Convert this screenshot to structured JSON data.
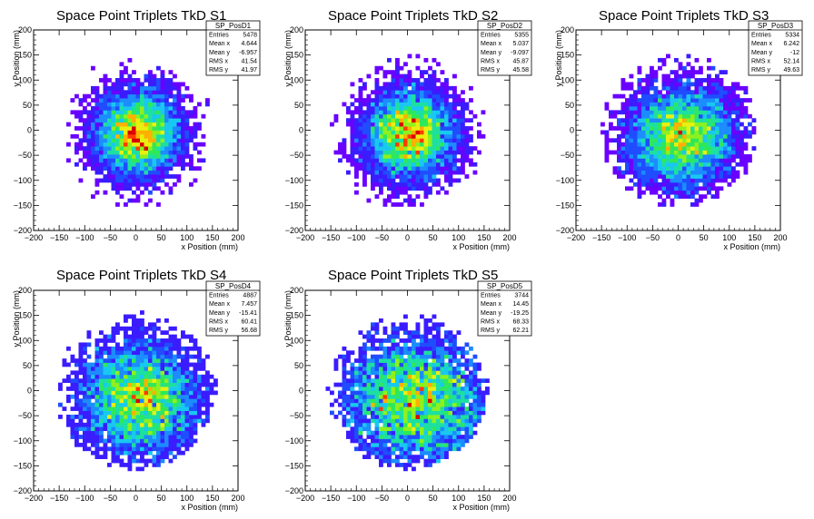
{
  "chart_data": [
    {
      "type": "heatmap",
      "title": "Space Point Triplets TkD S1",
      "xlabel": "x Position (mm)",
      "ylabel": "y Position (mm)",
      "xlim": [
        -200,
        200
      ],
      "ylim": [
        -200,
        200
      ],
      "xticks": [
        -200,
        -150,
        -100,
        -50,
        0,
        50,
        100,
        150,
        200
      ],
      "yticks": [
        -200,
        -150,
        -100,
        -50,
        0,
        50,
        100,
        150,
        200
      ],
      "stats": {
        "name": "SP_PosD1",
        "rows": [
          {
            "label": "Entries",
            "value": "5478"
          },
          {
            "label": "Mean x",
            "value": "4.644"
          },
          {
            "label": "Mean y",
            "value": "-6.957"
          },
          {
            "label": "RMS x",
            "value": "41.54"
          },
          {
            "label": "RMS y",
            "value": "41.97"
          }
        ]
      },
      "distribution": {
        "mean_x": 4.644,
        "mean_y": -6.957,
        "rms_x": 41.54,
        "rms_y": 41.97,
        "radius": 155,
        "entries": 5478
      }
    },
    {
      "type": "heatmap",
      "title": "Space Point Triplets TkD S2",
      "xlabel": "x Position (mm)",
      "ylabel": "y Position (mm)",
      "xlim": [
        -200,
        200
      ],
      "ylim": [
        -200,
        200
      ],
      "xticks": [
        -200,
        -150,
        -100,
        -50,
        0,
        50,
        100,
        150,
        200
      ],
      "yticks": [
        -200,
        -150,
        -100,
        -50,
        0,
        50,
        100,
        150,
        200
      ],
      "stats": {
        "name": "SP_PosD2",
        "rows": [
          {
            "label": "Entries",
            "value": "5355"
          },
          {
            "label": "Mean x",
            "value": "5.037"
          },
          {
            "label": "Mean y",
            "value": "-9.097"
          },
          {
            "label": "RMS x",
            "value": "45.87"
          },
          {
            "label": "RMS y",
            "value": "45.58"
          }
        ]
      },
      "distribution": {
        "mean_x": 5.037,
        "mean_y": -9.097,
        "rms_x": 45.87,
        "rms_y": 45.58,
        "radius": 155,
        "entries": 5355
      }
    },
    {
      "type": "heatmap",
      "title": "Space Point Triplets TkD S3",
      "xlabel": "x Position (mm)",
      "ylabel": "y Position (mm)",
      "xlim": [
        -200,
        200
      ],
      "ylim": [
        -200,
        200
      ],
      "xticks": [
        -200,
        -150,
        -100,
        -50,
        0,
        50,
        100,
        150,
        200
      ],
      "yticks": [
        -200,
        -150,
        -100,
        -50,
        0,
        50,
        100,
        150,
        200
      ],
      "stats": {
        "name": "SP_PosD3",
        "rows": [
          {
            "label": "Entries",
            "value": "5334"
          },
          {
            "label": "Mean x",
            "value": "6.242"
          },
          {
            "label": "Mean y",
            "value": "-12"
          },
          {
            "label": "RMS x",
            "value": "52.14"
          },
          {
            "label": "RMS y",
            "value": "49.63"
          }
        ]
      },
      "distribution": {
        "mean_x": 6.242,
        "mean_y": -12,
        "rms_x": 52.14,
        "rms_y": 49.63,
        "radius": 155,
        "entries": 5334
      }
    },
    {
      "type": "heatmap",
      "title": "Space Point Triplets TkD S4",
      "xlabel": "x Position (mm)",
      "ylabel": "y Position (mm)",
      "xlim": [
        -200,
        200
      ],
      "ylim": [
        -200,
        200
      ],
      "xticks": [
        -200,
        -150,
        -100,
        -50,
        0,
        50,
        100,
        150,
        200
      ],
      "yticks": [
        -200,
        -150,
        -100,
        -50,
        0,
        50,
        100,
        150,
        200
      ],
      "stats": {
        "name": "SP_PosD4",
        "rows": [
          {
            "label": "Entries",
            "value": "4887"
          },
          {
            "label": "Mean x",
            "value": "7.457"
          },
          {
            "label": "Mean y",
            "value": "-15.41"
          },
          {
            "label": "RMS x",
            "value": "60.41"
          },
          {
            "label": "RMS y",
            "value": "56.68"
          }
        ]
      },
      "distribution": {
        "mean_x": 7.457,
        "mean_y": -15.41,
        "rms_x": 60.41,
        "rms_y": 56.68,
        "radius": 155,
        "entries": 4887
      }
    },
    {
      "type": "heatmap",
      "title": "Space Point Triplets TkD S5",
      "xlabel": "x Position (mm)",
      "ylabel": "y Position (mm)",
      "xlim": [
        -200,
        200
      ],
      "ylim": [
        -200,
        200
      ],
      "xticks": [
        -200,
        -150,
        -100,
        -50,
        0,
        50,
        100,
        150,
        200
      ],
      "yticks": [
        -200,
        -150,
        -100,
        -50,
        0,
        50,
        100,
        150,
        200
      ],
      "stats": {
        "name": "SP_PosD5",
        "rows": [
          {
            "label": "Entries",
            "value": "3744"
          },
          {
            "label": "Mean x",
            "value": "14.45"
          },
          {
            "label": "Mean y",
            "value": "-19.25"
          },
          {
            "label": "RMS x",
            "value": "68.33"
          },
          {
            "label": "RMS y",
            "value": "62.21"
          }
        ]
      },
      "distribution": {
        "mean_x": 14.45,
        "mean_y": -19.25,
        "rms_x": 68.33,
        "rms_y": 62.21,
        "radius": 155,
        "entries": 3744
      }
    }
  ],
  "colors": {
    "palette": [
      "#6a00ff",
      "#3a1cff",
      "#1f4dff",
      "#1c8cff",
      "#19c8f0",
      "#1de0a0",
      "#2ee85a",
      "#8ef01e",
      "#e8f010",
      "#ffb000",
      "#ff3c00",
      "#d80000"
    ],
    "background": "#ffffff",
    "frame": "#000000"
  }
}
